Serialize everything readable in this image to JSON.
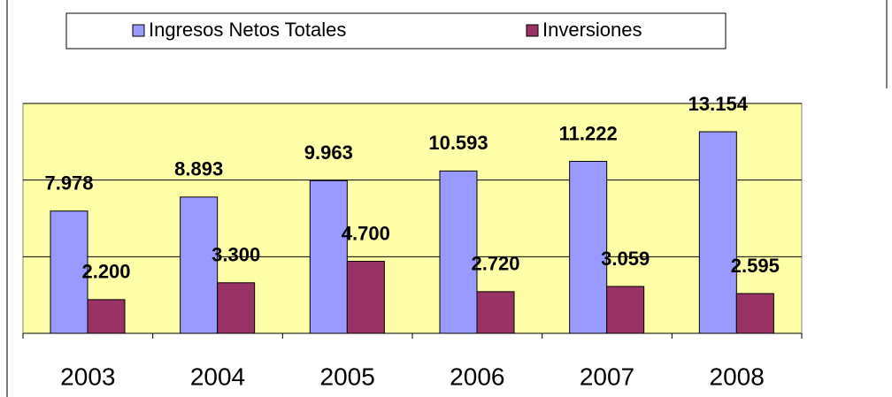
{
  "chart_data": {
    "type": "bar",
    "categories": [
      "2003",
      "2004",
      "2005",
      "2006",
      "2007",
      "2008"
    ],
    "series": [
      {
        "name": "Ingresos Netos Totales",
        "color": "#9999ff",
        "values": [
          7978,
          8893,
          9963,
          10593,
          11222,
          13154
        ],
        "value_labels": [
          "7.978",
          "8.893",
          "9.963",
          "10.593",
          "11.222",
          "13.154"
        ]
      },
      {
        "name": "Inversiones",
        "color": "#993366",
        "values": [
          2200,
          3300,
          4700,
          2720,
          3059,
          2595
        ],
        "value_labels": [
          "2.200",
          "3.300",
          "4.700",
          "2.720",
          "3.059",
          "2.595"
        ]
      }
    ],
    "ylim": [
      0,
      15000
    ],
    "yticks": [
      0,
      5000,
      10000,
      15000
    ],
    "grid": true,
    "legend": "top"
  }
}
